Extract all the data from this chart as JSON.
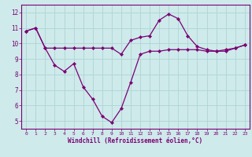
{
  "xlabel": "Windchill (Refroidissement éolien,°C)",
  "x": [
    0,
    1,
    2,
    3,
    4,
    5,
    6,
    7,
    8,
    9,
    10,
    11,
    12,
    13,
    14,
    15,
    16,
    17,
    18,
    19,
    20,
    21,
    22,
    23
  ],
  "line1": [
    10.8,
    11.0,
    9.7,
    8.6,
    8.2,
    8.7,
    7.2,
    6.4,
    5.3,
    4.9,
    5.8,
    7.5,
    9.3,
    9.5,
    9.5,
    9.6,
    9.6,
    9.6,
    9.6,
    9.5,
    9.5,
    9.6,
    9.7,
    9.9
  ],
  "line2": [
    10.8,
    11.0,
    9.7,
    9.7,
    9.7,
    9.7,
    9.7,
    9.7,
    9.7,
    9.7,
    9.3,
    10.2,
    10.4,
    10.5,
    11.5,
    11.9,
    11.6,
    10.5,
    9.8,
    9.6,
    9.5,
    9.5,
    9.7,
    9.9
  ],
  "ylim": [
    4.5,
    12.5
  ],
  "xlim": [
    -0.5,
    23.5
  ],
  "yticks": [
    5,
    6,
    7,
    8,
    9,
    10,
    11,
    12
  ],
  "xticks": [
    0,
    1,
    2,
    3,
    4,
    5,
    6,
    7,
    8,
    9,
    10,
    11,
    12,
    13,
    14,
    15,
    16,
    17,
    18,
    19,
    20,
    21,
    22,
    23
  ],
  "line_color": "#7b0076",
  "bg_color": "#ceeaea",
  "grid_color": "#aed4d4"
}
